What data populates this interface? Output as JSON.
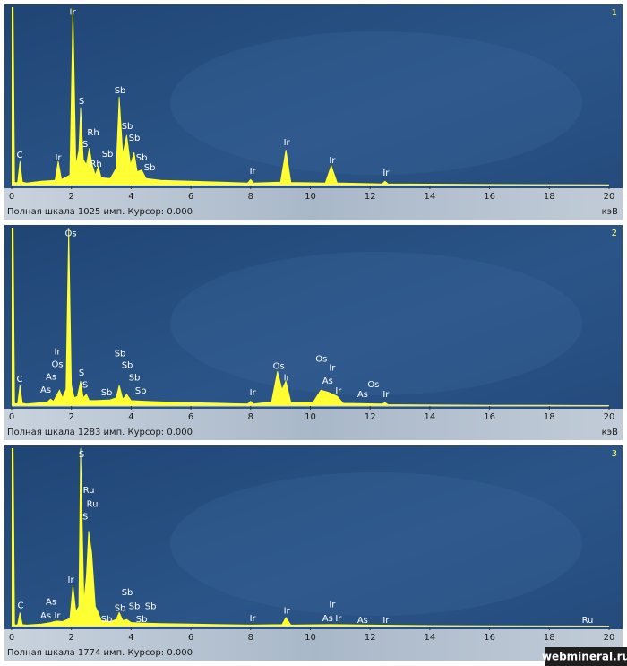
{
  "chart_data": [
    {
      "type": "area",
      "panel_label": "1",
      "color": "#ffff33",
      "x": [
        0,
        0.05,
        0.1,
        0.15,
        0.2,
        0.28,
        0.36,
        0.5,
        1.0,
        1.45,
        1.56,
        1.67,
        1.95,
        2.05,
        2.15,
        2.25,
        2.31,
        2.4,
        2.5,
        2.6,
        2.7,
        2.8,
        2.9,
        3.0,
        3.3,
        3.5,
        3.6,
        3.72,
        3.85,
        3.98,
        4.1,
        4.2,
        4.35,
        4.5,
        5.0,
        6.0,
        7.0,
        7.9,
        8.0,
        8.1,
        9.0,
        9.18,
        9.35,
        10.5,
        10.7,
        10.9,
        12.4,
        12.5,
        12.6,
        14,
        16,
        18,
        20
      ],
      "values": [
        1025,
        1025,
        20,
        15,
        20,
        140,
        20,
        15,
        25,
        30,
        140,
        35,
        60,
        1025,
        120,
        200,
        450,
        150,
        120,
        215,
        120,
        60,
        110,
        45,
        40,
        100,
        510,
        180,
        290,
        120,
        190,
        80,
        90,
        40,
        30,
        25,
        20,
        15,
        35,
        15,
        20,
        205,
        18,
        15,
        115,
        15,
        10,
        25,
        10,
        8,
        6,
        5,
        4
      ],
      "xlim": [
        0,
        20
      ],
      "xticks": [
        0,
        2,
        4,
        6,
        8,
        10,
        12,
        14,
        16,
        18,
        20
      ],
      "ylim": [
        0,
        1025
      ],
      "x_label": "кэВ",
      "footer": "Полная шкала 1025 имп. Курсор: 0.000",
      "annotations": [
        {
          "text": "C",
          "x": 0.27,
          "y": 175
        },
        {
          "text": "Ir",
          "x": 2.04,
          "y": 996
        },
        {
          "text": "S",
          "x": 2.34,
          "y": 484
        },
        {
          "text": "Rh",
          "x": 2.73,
          "y": 304
        },
        {
          "text": "S",
          "x": 2.46,
          "y": 237
        },
        {
          "text": "Rh",
          "x": 2.82,
          "y": 124
        },
        {
          "text": "Sb",
          "x": 3.21,
          "y": 180
        },
        {
          "text": "Sb",
          "x": 3.63,
          "y": 546
        },
        {
          "text": "Sb",
          "x": 3.87,
          "y": 340
        },
        {
          "text": "Sb",
          "x": 4.11,
          "y": 273
        },
        {
          "text": "Sb",
          "x": 4.35,
          "y": 160
        },
        {
          "text": "Sb",
          "x": 4.62,
          "y": 103
        },
        {
          "text": "Ir",
          "x": 1.56,
          "y": 160
        },
        {
          "text": "Ir",
          "x": 8.07,
          "y": 82
        },
        {
          "text": "Ir",
          "x": 9.21,
          "y": 247
        },
        {
          "text": "Ir",
          "x": 10.73,
          "y": 144
        },
        {
          "text": "Ir",
          "x": 12.53,
          "y": 72
        }
      ]
    },
    {
      "type": "area",
      "panel_label": "2",
      "color": "#ffff33",
      "x": [
        0,
        0.05,
        0.1,
        0.15,
        0.2,
        0.28,
        0.36,
        0.5,
        1.0,
        1.2,
        1.3,
        1.4,
        1.6,
        1.7,
        1.82,
        1.91,
        2.0,
        2.1,
        2.2,
        2.31,
        2.4,
        2.5,
        2.6,
        2.8,
        3.3,
        3.5,
        3.6,
        3.72,
        3.85,
        4.0,
        4.5,
        5,
        6,
        7,
        7.9,
        8.0,
        8.1,
        8.7,
        8.9,
        9.05,
        9.18,
        9.35,
        10.1,
        10.35,
        10.6,
        10.9,
        11.1,
        12.4,
        12.5,
        12.6,
        14,
        16,
        18,
        20
      ],
      "values": [
        1283,
        1283,
        20,
        15,
        20,
        150,
        20,
        15,
        25,
        30,
        50,
        35,
        115,
        60,
        120,
        1283,
        150,
        60,
        70,
        180,
        60,
        85,
        40,
        40,
        45,
        60,
        150,
        50,
        85,
        40,
        35,
        30,
        25,
        20,
        15,
        35,
        15,
        30,
        250,
        120,
        180,
        25,
        30,
        115,
        100,
        70,
        20,
        15,
        25,
        10,
        8,
        6,
        5,
        4
      ],
      "xlim": [
        0,
        20
      ],
      "xticks": [
        0,
        2,
        4,
        6,
        8,
        10,
        12,
        14,
        16,
        18,
        20
      ],
      "ylim": [
        0,
        1283
      ],
      "x_label": "кэВ",
      "footer": "Полная шкала 1283 имп. Курсор: 0.000",
      "annotations": [
        {
          "text": "Os",
          "x": 1.98,
          "y": 1241
        },
        {
          "text": "C",
          "x": 0.27,
          "y": 195
        },
        {
          "text": "Ir",
          "x": 1.53,
          "y": 390
        },
        {
          "text": "Os",
          "x": 1.53,
          "y": 299
        },
        {
          "text": "As",
          "x": 1.32,
          "y": 208
        },
        {
          "text": "As",
          "x": 1.14,
          "y": 117
        },
        {
          "text": "S",
          "x": 2.34,
          "y": 240
        },
        {
          "text": "S",
          "x": 2.46,
          "y": 150
        },
        {
          "text": "Sb",
          "x": 3.18,
          "y": 98
        },
        {
          "text": "Sb",
          "x": 3.63,
          "y": 377
        },
        {
          "text": "Sb",
          "x": 3.87,
          "y": 293
        },
        {
          "text": "Sb",
          "x": 4.11,
          "y": 202
        },
        {
          "text": "Sb",
          "x": 4.32,
          "y": 111
        },
        {
          "text": "Ir",
          "x": 8.07,
          "y": 98
        },
        {
          "text": "Os",
          "x": 8.94,
          "y": 286
        },
        {
          "text": "Ir",
          "x": 9.21,
          "y": 202
        },
        {
          "text": "Os",
          "x": 10.37,
          "y": 338
        },
        {
          "text": "Ir",
          "x": 10.73,
          "y": 273
        },
        {
          "text": "As",
          "x": 10.58,
          "y": 182
        },
        {
          "text": "Ir",
          "x": 10.94,
          "y": 111
        },
        {
          "text": "As",
          "x": 11.75,
          "y": 85
        },
        {
          "text": "Os",
          "x": 12.11,
          "y": 156
        },
        {
          "text": "Ir",
          "x": 12.53,
          "y": 85
        }
      ]
    },
    {
      "type": "area",
      "panel_label": "3",
      "color": "#ffff33",
      "x": [
        0,
        0.05,
        0.1,
        0.15,
        0.2,
        0.28,
        0.36,
        0.5,
        1.0,
        1.3,
        1.5,
        1.7,
        1.95,
        2.05,
        2.15,
        2.25,
        2.31,
        2.42,
        2.5,
        2.58,
        2.68,
        2.8,
        2.9,
        3.0,
        3.3,
        3.5,
        3.6,
        3.72,
        3.85,
        4.0,
        4.5,
        5,
        6,
        7,
        8,
        9.05,
        9.18,
        9.35,
        10.7,
        12,
        14,
        16,
        18,
        20
      ],
      "values": [
        1774,
        1774,
        20,
        15,
        20,
        140,
        20,
        15,
        25,
        40,
        55,
        50,
        80,
        410,
        150,
        200,
        1774,
        250,
        500,
        950,
        730,
        200,
        140,
        60,
        50,
        70,
        140,
        60,
        70,
        40,
        35,
        30,
        25,
        20,
        15,
        20,
        90,
        15,
        20,
        15,
        10,
        8,
        6,
        5
      ],
      "xlim": [
        0,
        20
      ],
      "xticks": [
        0,
        2,
        4,
        6,
        8,
        10,
        12,
        14,
        16,
        18,
        20
      ],
      "ylim": [
        0,
        1774
      ],
      "x_label": "кэВ",
      "footer": "Полная шкала 1774 имп. Курсор: 0.000",
      "annotations": [
        {
          "text": "S",
          "x": 2.34,
          "y": 1711
        },
        {
          "text": "Ru",
          "x": 2.58,
          "y": 1356
        },
        {
          "text": "Ru",
          "x": 2.7,
          "y": 1219
        },
        {
          "text": "S",
          "x": 2.46,
          "y": 1092
        },
        {
          "text": "Ir",
          "x": 1.98,
          "y": 464
        },
        {
          "text": "C",
          "x": 0.3,
          "y": 209
        },
        {
          "text": "As",
          "x": 1.32,
          "y": 246
        },
        {
          "text": "As",
          "x": 1.14,
          "y": 109
        },
        {
          "text": "Ir",
          "x": 1.53,
          "y": 109
        },
        {
          "text": "Sb",
          "x": 3.18,
          "y": 73
        },
        {
          "text": "Sb",
          "x": 3.63,
          "y": 182
        },
        {
          "text": "Sb",
          "x": 3.87,
          "y": 337
        },
        {
          "text": "Sb",
          "x": 4.11,
          "y": 200
        },
        {
          "text": "Sb",
          "x": 4.65,
          "y": 200
        },
        {
          "text": "Sb",
          "x": 4.35,
          "y": 73
        },
        {
          "text": "Ir",
          "x": 8.07,
          "y": 82
        },
        {
          "text": "Ir",
          "x": 9.21,
          "y": 155
        },
        {
          "text": "Ir",
          "x": 10.73,
          "y": 218
        },
        {
          "text": "As",
          "x": 10.58,
          "y": 82
        },
        {
          "text": "Ir",
          "x": 10.94,
          "y": 82
        },
        {
          "text": "As",
          "x": 11.75,
          "y": 64
        },
        {
          "text": "Ir",
          "x": 12.53,
          "y": 64
        },
        {
          "text": "Ru",
          "x": 19.28,
          "y": 64
        }
      ]
    }
  ],
  "watermark": "webmineral.ru"
}
